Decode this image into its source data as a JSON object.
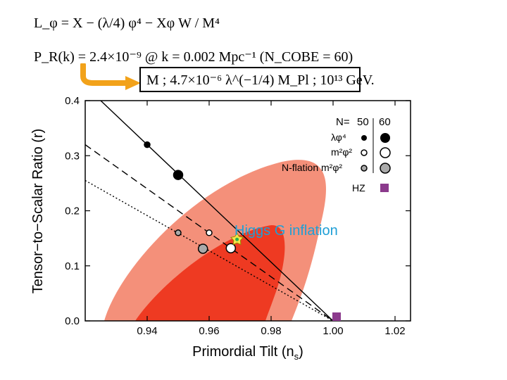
{
  "equations": {
    "lagrangian": "L_φ = X − (λ/4) φ⁴ − Xφ W / M⁴",
    "power_spectrum": "P_R(k) = 2.4×10⁻⁹ @ k = 0.002 Mpc⁻¹ (N_COBE = 60)",
    "constraint": "M ; 4.7×10⁻⁶ λ^(−1/4) M_Pl ; 10¹³ GeV."
  },
  "colors": {
    "contour_outer": "#f4907a",
    "contour_inner": "#ee3a22",
    "arrow": "#f2a21a",
    "hz": "#8b3a8c",
    "higgs_label": "#1f9fd6",
    "higgs_marker": "#f6e34a"
  },
  "higgs_label": "Higgs G inflation",
  "chart_data": {
    "type": "scatter",
    "xlabel_main": "Primordial Tilt (n",
    "xlabel_sub": "s",
    "xlabel_end": ")",
    "ylabel": "Tensor−to−Scalar Ratio (r)",
    "xlim": [
      0.92,
      1.025
    ],
    "ylim": [
      0,
      0.4
    ],
    "x_ticks": [
      "0.94",
      "0.96",
      "0.98",
      "1.00",
      "1.02"
    ],
    "x_tick_values": [
      0.94,
      0.96,
      0.98,
      1.0,
      1.02
    ],
    "y_ticks": [
      "0.0",
      "0.1",
      "0.2",
      "0.3",
      "0.4"
    ],
    "y_tick_values": [
      0.0,
      0.1,
      0.2,
      0.3,
      0.4
    ],
    "legend": {
      "placement": "top-right",
      "header_n": "N=",
      "header_50": "50",
      "header_60": "60",
      "rows": [
        "λφ⁴",
        "m²φ²",
        "N-flation m²φ²"
      ],
      "hz": "HZ"
    },
    "model_lines": [
      {
        "model": "lambda_phi4",
        "style": "solid",
        "x": [
          0.925,
          1.0
        ],
        "y": [
          0.4,
          0.0
        ]
      },
      {
        "model": "m2phi2",
        "style": "dashed",
        "x": [
          0.92,
          1.0
        ],
        "y": [
          0.32,
          0.0
        ]
      },
      {
        "model": "nflation",
        "style": "dotted",
        "x": [
          0.92,
          1.0
        ],
        "y": [
          0.255,
          0.0
        ]
      }
    ],
    "points": [
      {
        "model": "lambda_phi4",
        "N": 50,
        "x": 0.94,
        "y": 0.32,
        "style": "black-small"
      },
      {
        "model": "lambda_phi4",
        "N": 60,
        "x": 0.95,
        "y": 0.265,
        "style": "black-large"
      },
      {
        "model": "m2phi2",
        "N": 50,
        "x": 0.96,
        "y": 0.16,
        "style": "white-small"
      },
      {
        "model": "m2phi2",
        "N": 60,
        "x": 0.967,
        "y": 0.132,
        "style": "white-large"
      },
      {
        "model": "nflation",
        "N": 50,
        "x": 0.95,
        "y": 0.16,
        "style": "gray-small"
      },
      {
        "model": "nflation",
        "N": 60,
        "x": 0.958,
        "y": 0.131,
        "style": "gray-large"
      },
      {
        "model": "HZ",
        "x": 1.0,
        "y": 0.0,
        "style": "purple-square"
      },
      {
        "model": "Higgs G inflation",
        "x": 0.969,
        "y": 0.148,
        "style": "star"
      }
    ]
  }
}
